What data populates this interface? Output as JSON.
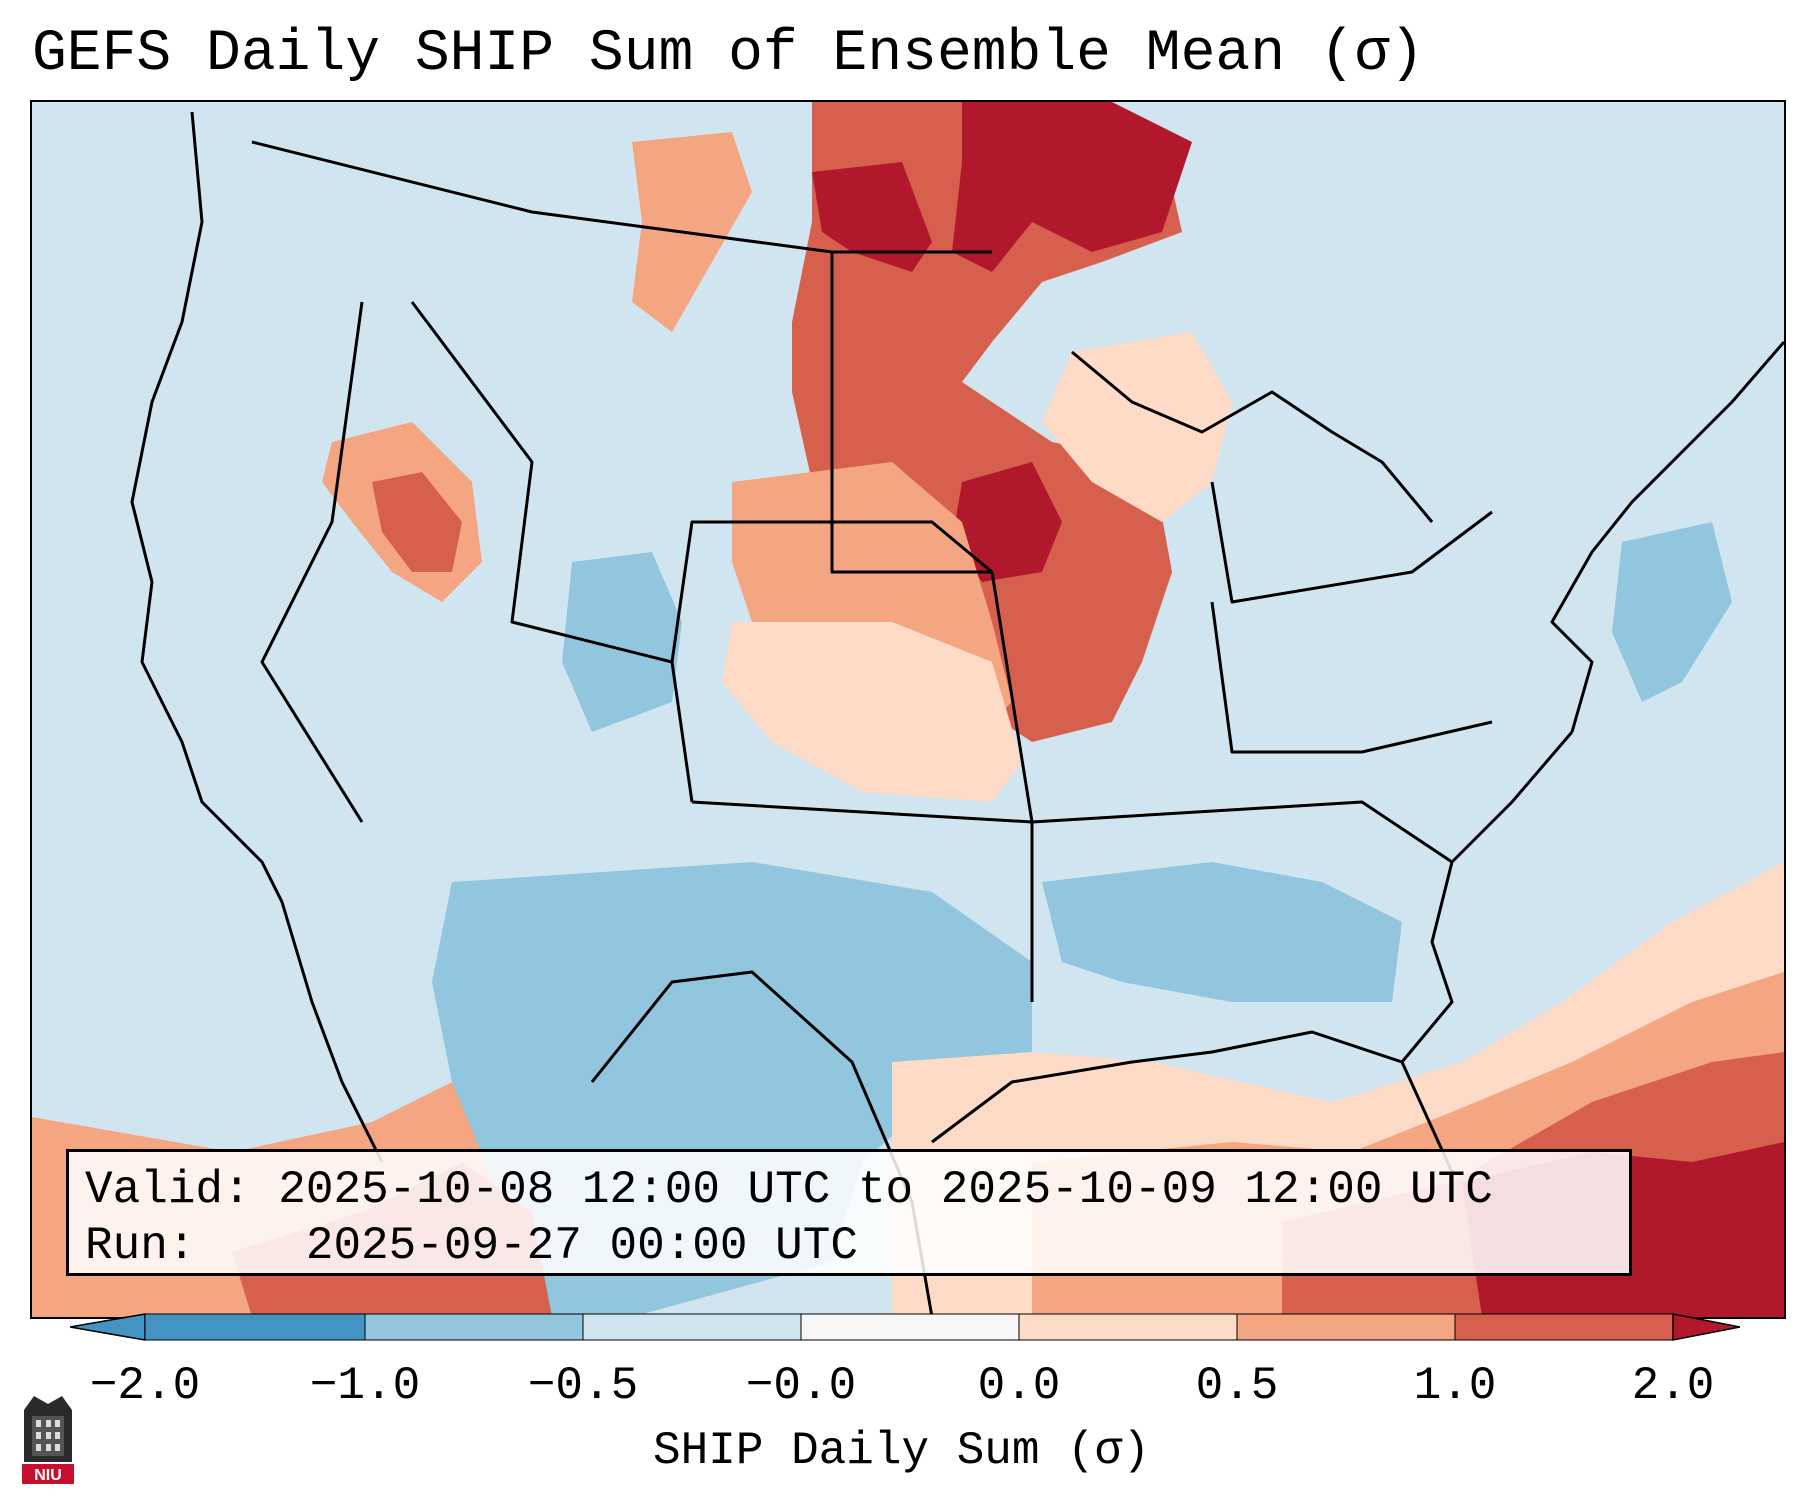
{
  "title": "GEFS Daily SHIP Sum of Ensemble Mean (σ)",
  "info": {
    "valid_label": "Valid:",
    "valid_value": "2025-10-08 12:00 UTC to 2025-10-09 12:00 UTC",
    "run_label": "Run:",
    "run_value": "2025-09-27 00:00 UTC"
  },
  "colorbar": {
    "title": "SHIP Daily Sum (σ)",
    "tick_labels": [
      "−2.0",
      "−1.0",
      "−0.5",
      "−0.0",
      "0.0",
      "0.5",
      "1.0",
      "2.0"
    ],
    "bins": [
      {
        "range": "<-2.0",
        "color": "#4393c3"
      },
      {
        "range": "-2.0 to -1.0",
        "color": "#4393c3"
      },
      {
        "range": "-1.0 to -0.5",
        "color": "#92c5de"
      },
      {
        "range": "-0.5 to -0.0",
        "color": "#d1e5f0"
      },
      {
        "range": "0.0",
        "color": "#f7f7f7"
      },
      {
        "range": "0.0 to 0.5",
        "color": "#fddbc7"
      },
      {
        "range": "0.5 to 1.0",
        "color": "#f4a582"
      },
      {
        "range": "1.0 to 2.0",
        "color": "#d6604d"
      },
      {
        "range": ">2.0",
        "color": "#b2182b"
      }
    ]
  },
  "logo": {
    "text": "NIU",
    "name": "Northern Illinois University"
  },
  "map": {
    "region": "Contiguous United States",
    "colors": {
      "background": "#d1e5f0",
      "neg_mid": "#92c5de",
      "pos_light": "#fddbc7",
      "pos_mid": "#f4a582",
      "pos_high": "#d6604d",
      "pos_max": "#b2182b"
    }
  }
}
